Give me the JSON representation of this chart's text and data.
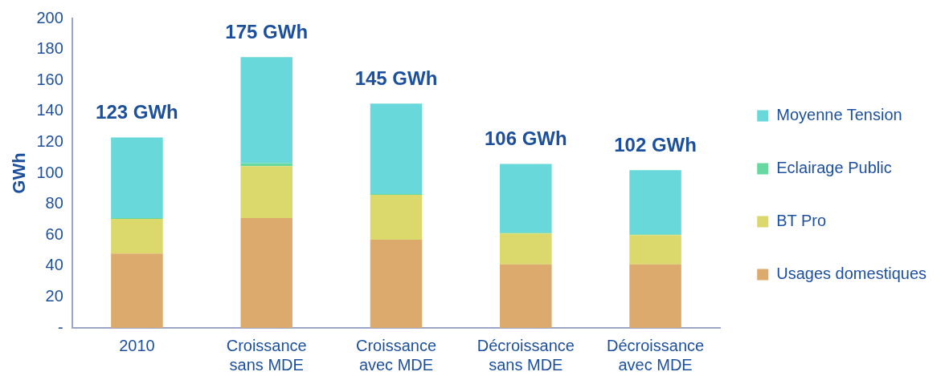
{
  "chart_data": {
    "type": "bar",
    "stacked": true,
    "ylabel": "GWh",
    "categories": [
      "2010",
      "Croissance sans MDE",
      "Croissance avec MDE",
      "Décroissance sans MDE",
      "Décroissance avec MDE"
    ],
    "series": [
      {
        "name": "Usages domestiques",
        "color": "#dcaa6c",
        "values": [
          48,
          71,
          57,
          41,
          41
        ]
      },
      {
        "name": "BT Pro",
        "color": "#dbd86c",
        "values": [
          22.5,
          33.5,
          29,
          20,
          19
        ]
      },
      {
        "name": "Eclairage Public",
        "color": "#66d9a0",
        "values": [
          0.5,
          2,
          0.5,
          0.5,
          0.5
        ]
      },
      {
        "name": "Moyenne Tension",
        "color": "#68d8da",
        "values": [
          52,
          68.5,
          58.5,
          44.5,
          41.5
        ]
      }
    ],
    "totals": [
      "123 GWh",
      "175 GWh",
      "145 GWh",
      "106 GWh",
      "102 GWh"
    ],
    "ylim": [
      0,
      200
    ],
    "yticks": [
      {
        "value": 0,
        "label": "-"
      },
      20,
      40,
      60,
      80,
      100,
      120,
      140,
      160,
      180,
      200
    ],
    "grid": false,
    "legend": "right"
  }
}
